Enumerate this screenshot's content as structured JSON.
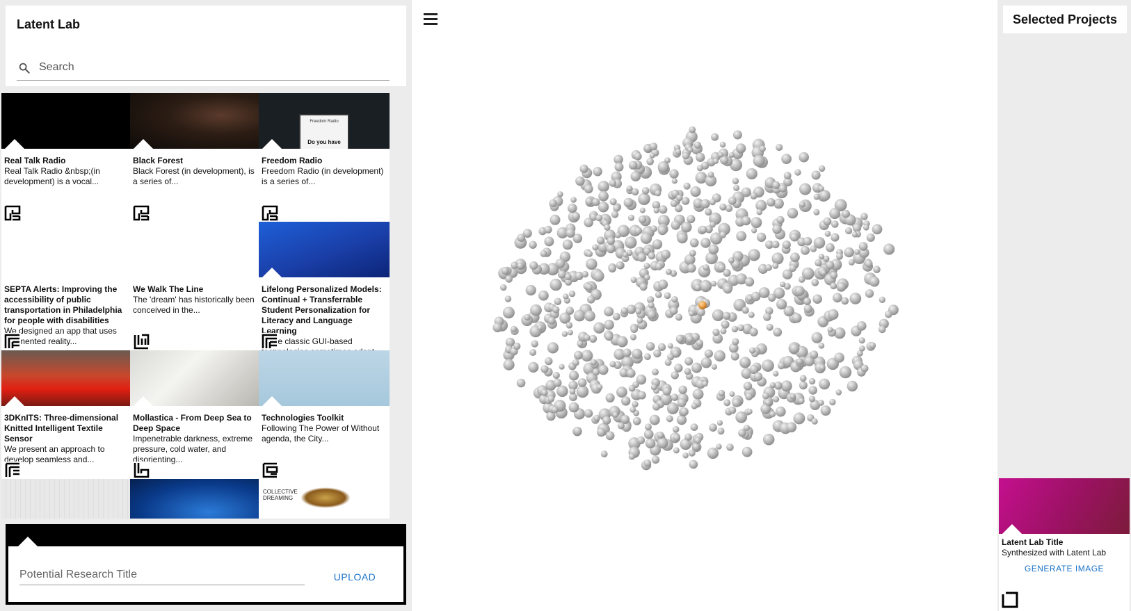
{
  "sidebar": {
    "title": "Latent Lab",
    "search_placeholder": "Search",
    "cards": [
      {
        "title": "Real Talk Radio",
        "desc": "Real Talk Radio &nbsp;(in development) is a vocal...",
        "thumb": "t-black",
        "logo": "logo-a"
      },
      {
        "title": "Black Forest",
        "desc": "Black Forest (in development), is a series of...",
        "thumb": "t-forest",
        "logo": "logo-a"
      },
      {
        "title": "Freedom Radio",
        "desc": "Freedom Radio (in development) is a series of...",
        "thumb": "t-freedom",
        "logo": "logo-a",
        "thumb_sign_small": "Freedom Radio",
        "thumb_sign_large": "Do you have"
      },
      {
        "title": "SEPTA Alerts: Improving the accessibility of public transportation in Philadelphia for people with disabilities",
        "desc": "We designed an app that uses augmented reality...",
        "thumb": "t-white",
        "logo": "logo-b"
      },
      {
        "title": "We Walk The Line",
        "desc": "The 'dream' has historically been conceived in the...",
        "thumb": "t-white",
        "logo": "logo-c"
      },
      {
        "title": "Lifelong Personalized Models: Continual + Transferrable Student Personalization for Literacy and Language Learning",
        "desc": "While classic GUI-based technologies sometimes adapt",
        "thumb": "t-blue",
        "logo": "logo-b"
      },
      {
        "title": "3DKnITS: Three-dimensional Knitted Intelligent Textile Sensor",
        "desc": "We present an approach to develop seamless and...",
        "thumb": "t-red",
        "logo": "logo-d"
      },
      {
        "title": "Mollastica - From Deep Sea to Deep Space",
        "desc": "Impenetrable darkness, extreme pressure, cold water, and disorienting...",
        "thumb": "t-lab",
        "logo": "logo-e"
      },
      {
        "title": "Technologies Toolkit",
        "desc": "Following The Power of Without agenda, the City...",
        "thumb": "t-books",
        "logo": "logo-f"
      },
      {
        "title": "",
        "desc": "",
        "thumb": "t-room",
        "logo": ""
      },
      {
        "title": "",
        "desc": "",
        "thumb": "t-space",
        "logo": ""
      },
      {
        "title": "",
        "desc": "",
        "thumb": "t-collective",
        "logo": "",
        "thumb_text": "COLLECTIVE DREAMING"
      }
    ]
  },
  "upload": {
    "placeholder": "Potential Research Title",
    "button_label": "UPLOAD"
  },
  "main": {
    "menu_icon": "hamburger-icon",
    "highlight_color": "#e8a14a",
    "point_color": "#b8b8b8"
  },
  "selected": {
    "header": "Selected Projects",
    "card": {
      "title": "Latent Lab Title",
      "subtitle": "Synthesized with Latent Lab",
      "button_label": "GENERATE IMAGE"
    }
  }
}
